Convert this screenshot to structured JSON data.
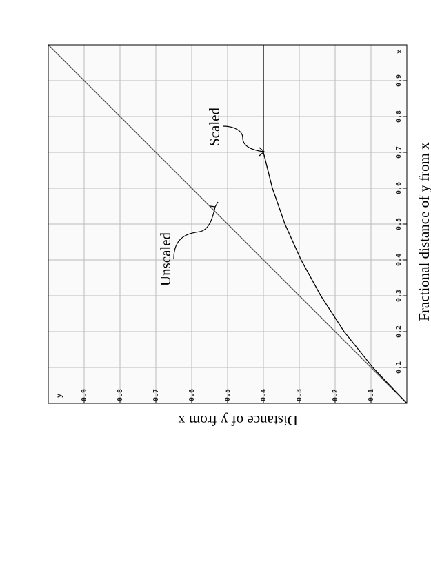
{
  "chart_data": {
    "type": "line",
    "xlabel": "Fractional distance of y from x",
    "ylabel": "Distance of y from x",
    "axis_names": {
      "x": "x",
      "y": "y"
    },
    "x": [
      0,
      0.1,
      0.2,
      0.3,
      0.4,
      0.5,
      0.6,
      0.7,
      0.8,
      0.9,
      1.0
    ],
    "series": [
      {
        "name": "Unscaled",
        "color": "#555555",
        "values": [
          0,
          0.1,
          0.2,
          0.3,
          0.4,
          0.5,
          0.6,
          0.7,
          0.8,
          0.9,
          1.0
        ]
      },
      {
        "name": "Scaled",
        "color": "#000000",
        "values": [
          0,
          0.095,
          0.175,
          0.24,
          0.295,
          0.34,
          0.375,
          0.4,
          0.4,
          0.4,
          0.4
        ]
      }
    ],
    "xlim": [
      0,
      1
    ],
    "ylim": [
      0,
      1
    ],
    "xticks": [
      0.1,
      0.2,
      0.3,
      0.4,
      0.5,
      0.6,
      0.7,
      0.8,
      0.9
    ],
    "yticks": [
      0.1,
      0.2,
      0.3,
      0.4,
      0.5,
      0.6,
      0.7,
      0.8,
      0.9
    ],
    "grid": true
  }
}
